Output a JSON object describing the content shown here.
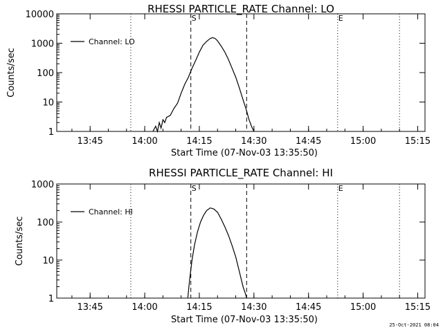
{
  "chart_data": [
    {
      "type": "line",
      "title": "RHESSI PARTICLE_RATE Channel: LO",
      "xlabel": "Start Time (07-Nov-03 13:35:50)",
      "ylabel": "Counts/sec",
      "y_scale": "log",
      "ylim": [
        1,
        10000
      ],
      "y_ticks": [
        1,
        10,
        100,
        1000,
        10000
      ],
      "y_tick_labels": [
        "1",
        "10",
        "100",
        "1000",
        "10000"
      ],
      "xlim": [
        "13:35:50",
        "15:17"
      ],
      "x_ticks": [
        "13:45",
        "14:00",
        "14:15",
        "14:30",
        "14:45",
        "15:00",
        "15:15"
      ],
      "legend": {
        "position": "top-left",
        "entries": [
          "Channel: LO"
        ]
      },
      "markers": [
        {
          "label": "",
          "time": "13:35:50",
          "style": "solid"
        },
        {
          "label": "",
          "time": "13:56:10",
          "style": "dotted"
        },
        {
          "label": "S",
          "time": "14:12:40",
          "style": "dashed"
        },
        {
          "label": "",
          "time": "14:28:00",
          "style": "dashed"
        },
        {
          "label": "E",
          "time": "14:53:00",
          "style": "dotted"
        },
        {
          "label": "",
          "time": "15:10:00",
          "style": "dotted"
        }
      ],
      "series": [
        {
          "name": "Channel: LO",
          "x": [
            "14:02:15",
            "14:03:00",
            "14:03:30",
            "14:04:00",
            "14:04:30",
            "14:05:00",
            "14:05:30",
            "14:06:00",
            "14:07:00",
            "14:08:00",
            "14:09:00",
            "14:10:00",
            "14:11:00",
            "14:12:00",
            "14:13:00",
            "14:14:00",
            "14:15:00",
            "14:16:00",
            "14:17:00",
            "14:18:00",
            "14:18:40",
            "14:19:20",
            "14:20:00",
            "14:21:00",
            "14:22:00",
            "14:23:00",
            "14:24:00",
            "14:25:00",
            "14:26:00",
            "14:27:00",
            "14:28:00",
            "14:28:40",
            "14:29:20",
            "14:30:00"
          ],
          "values": [
            1,
            1.5,
            1,
            2,
            1.3,
            2.5,
            2,
            3,
            3.5,
            6,
            9,
            20,
            40,
            70,
            140,
            260,
            500,
            850,
            1150,
            1450,
            1550,
            1450,
            1200,
            800,
            500,
            280,
            140,
            70,
            30,
            12,
            5,
            2.5,
            1.5,
            1
          ]
        }
      ]
    },
    {
      "type": "line",
      "title": "RHESSI PARTICLE_RATE Channel: HI",
      "xlabel": "Start Time (07-Nov-03 13:35:50)",
      "ylabel": "Counts/sec",
      "y_scale": "log",
      "ylim": [
        1,
        1000
      ],
      "y_ticks": [
        1,
        10,
        100,
        1000
      ],
      "y_tick_labels": [
        "1",
        "10",
        "100",
        "1000"
      ],
      "xlim": [
        "13:35:50",
        "15:17"
      ],
      "x_ticks": [
        "13:45",
        "14:00",
        "14:15",
        "14:30",
        "14:45",
        "15:00",
        "15:15"
      ],
      "legend": {
        "position": "top-left",
        "entries": [
          "Channel: HI"
        ]
      },
      "markers": [
        {
          "label": "",
          "time": "13:35:50",
          "style": "solid"
        },
        {
          "label": "",
          "time": "13:56:10",
          "style": "dotted"
        },
        {
          "label": "S",
          "time": "14:12:40",
          "style": "dashed"
        },
        {
          "label": "",
          "time": "14:28:00",
          "style": "dashed"
        },
        {
          "label": "E",
          "time": "14:53:00",
          "style": "dotted"
        },
        {
          "label": "",
          "time": "15:10:00",
          "style": "dotted"
        }
      ],
      "series": [
        {
          "name": "Channel: HI",
          "x": [
            "14:11:50",
            "14:12:20",
            "14:13:00",
            "14:13:40",
            "14:14:30",
            "14:15:20",
            "14:16:10",
            "14:17:00",
            "14:18:00",
            "14:19:00",
            "14:20:00",
            "14:21:00",
            "14:22:00",
            "14:23:00",
            "14:24:00",
            "14:25:00",
            "14:26:00",
            "14:27:00",
            "14:27:40",
            "14:28:00"
          ],
          "values": [
            1,
            3,
            10,
            25,
            55,
            100,
            150,
            200,
            235,
            220,
            180,
            120,
            75,
            45,
            24,
            12,
            5,
            2,
            1.3,
            1
          ]
        }
      ]
    }
  ],
  "footer": {
    "timestamp": "25-Oct-2021 08:04"
  },
  "colors": {
    "line": "#000000",
    "background": "#ffffff"
  }
}
